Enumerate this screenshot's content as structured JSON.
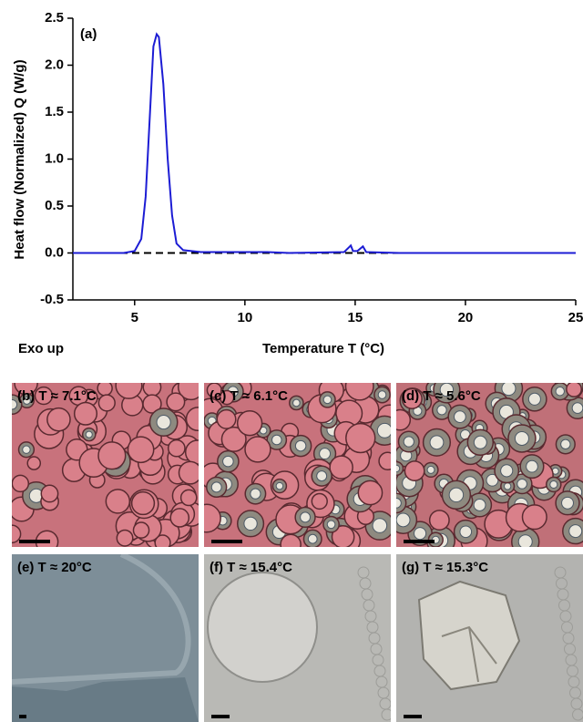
{
  "chart_data": {
    "type": "line",
    "panel_label": "(a)",
    "ylabel": "Heat flow (Normalized) Q (W/g)",
    "xlabel": "Temperature T (°C)",
    "note": "Exo up",
    "x": [
      2.2,
      4.5,
      5.0,
      5.3,
      5.5,
      5.7,
      5.85,
      6.0,
      6.1,
      6.3,
      6.5,
      6.7,
      6.9,
      7.2,
      8,
      10,
      11,
      12,
      14.5,
      14.8,
      14.9,
      15.1,
      15.35,
      15.5,
      17,
      25
    ],
    "values": [
      0,
      0,
      0.02,
      0.15,
      0.6,
      1.5,
      2.2,
      2.33,
      2.3,
      1.8,
      1.0,
      0.4,
      0.1,
      0.03,
      0.01,
      0.01,
      0.01,
      0,
      0.01,
      0.08,
      0.02,
      0.02,
      0.07,
      0.01,
      0,
      0
    ],
    "color": "#1c1cd4",
    "reference_line": 0,
    "xlim": [
      2.2,
      25
    ],
    "xticks": [
      5,
      10,
      15,
      20,
      25
    ],
    "ylim": [
      -0.5,
      2.5
    ],
    "yticks": [
      -0.5,
      {
        "value": 0,
        "label": "0.0"
      },
      0.5,
      {
        "value": 1,
        "label": "1.0"
      },
      1.5,
      {
        "value": 2,
        "label": "2.0"
      },
      2.5
    ]
  },
  "panels": [
    {
      "label": "(b) T ≈ 7.1°C"
    },
    {
      "label": "(c) T ≈ 6.1°C"
    },
    {
      "label": "(d) T ≈ 5.6°C"
    },
    {
      "label": "(e) T ≈ 20°C"
    },
    {
      "label": "(f) T ≈ 15.4°C"
    },
    {
      "label": "(g) T ≈ 15.3°C"
    }
  ]
}
